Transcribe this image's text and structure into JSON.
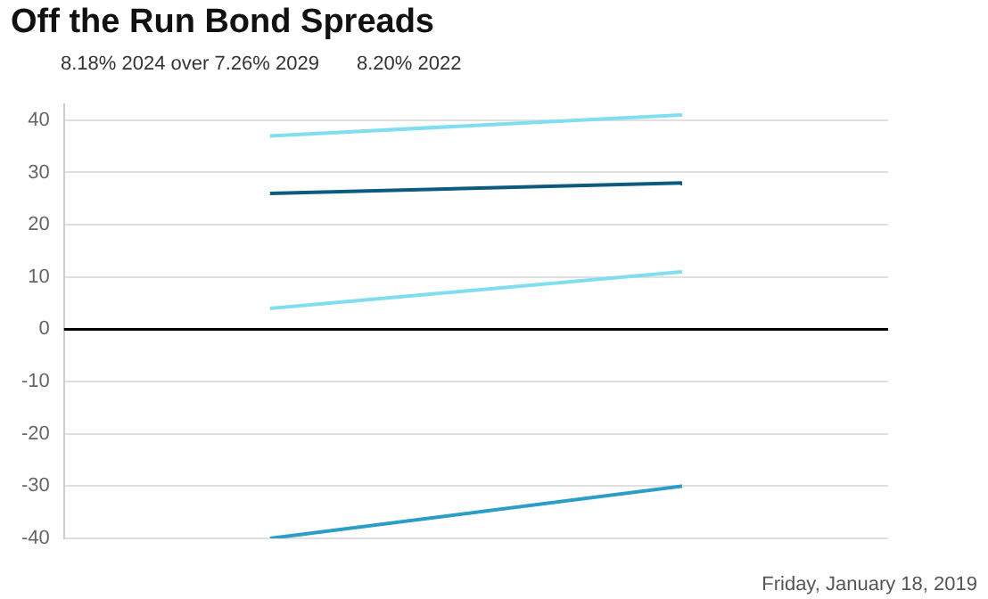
{
  "chart_data": {
    "type": "line",
    "title": "Off the Run Bond Spreads",
    "categories": [
      null,
      null
    ],
    "series": [
      {
        "color": "#80def0",
        "values": [
          37,
          41
        ]
      },
      {
        "color": "#0b5a80",
        "values": [
          26,
          28
        ]
      },
      {
        "color": "#80def0",
        "values": [
          4,
          11
        ]
      },
      {
        "color": "#2a9ec6",
        "values": [
          -40,
          -30
        ]
      }
    ],
    "ylim": [
      -40,
      43
    ],
    "yticks": [
      -40,
      -30,
      -20,
      -10,
      0,
      10,
      20,
      30,
      40
    ],
    "grid": "y",
    "marker": "none",
    "line_style": "solid",
    "legend": false,
    "ref_lines": [
      {
        "axis": "y",
        "value": 0,
        "color": "#000000"
      }
    ],
    "annotations": [
      "8.18% 2024 over 7.26% 2029",
      "8.20% 2022",
      "Friday, January 18, 2019"
    ]
  }
}
